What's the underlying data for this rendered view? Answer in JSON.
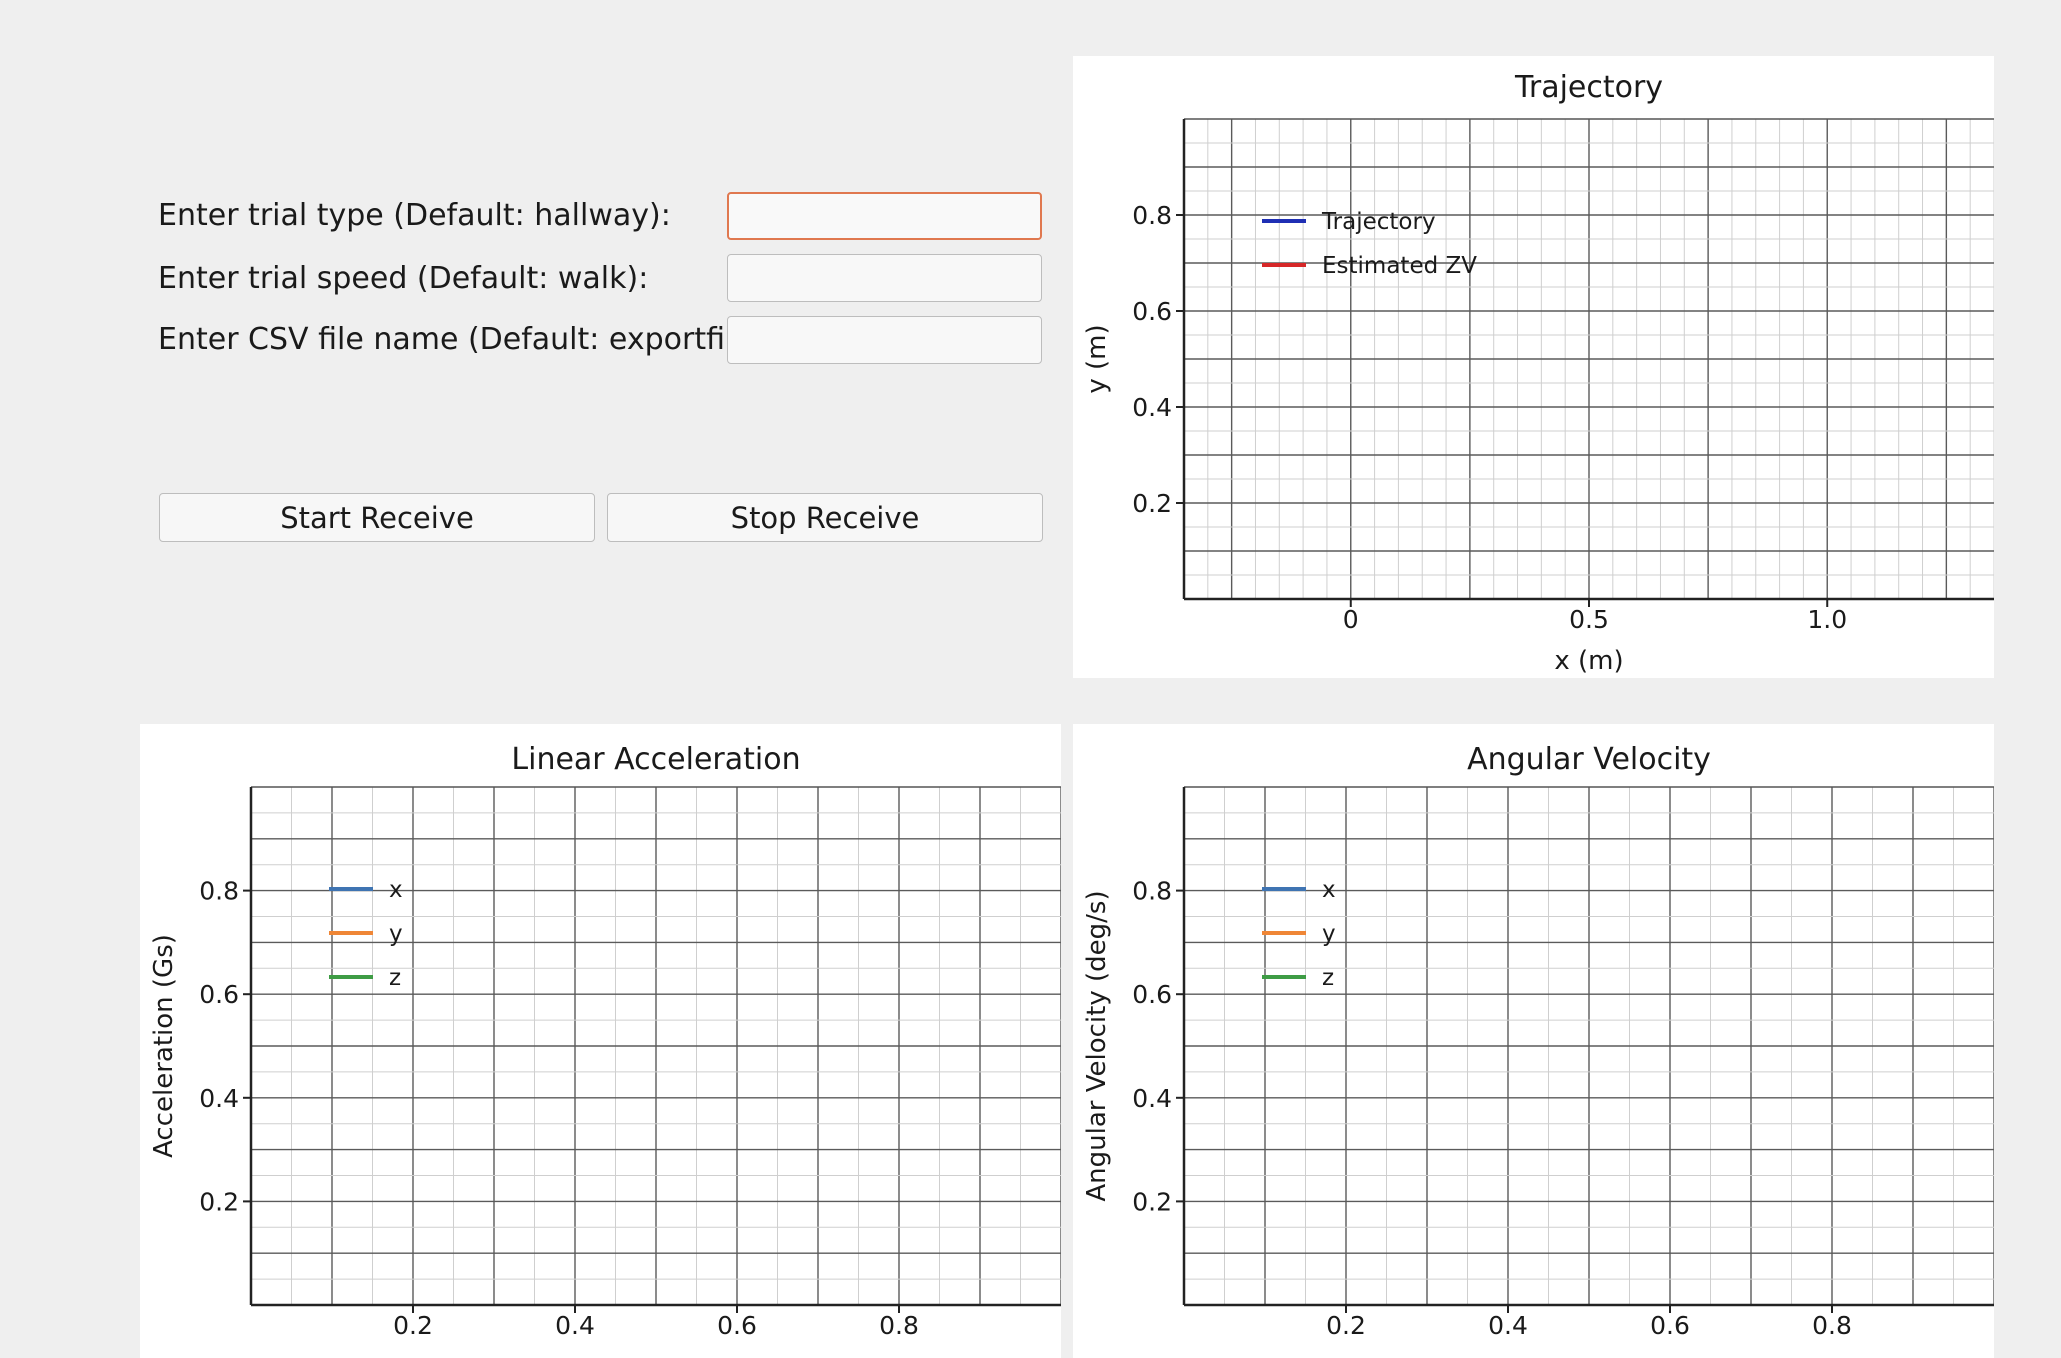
{
  "form": {
    "trial_type": {
      "label": "Enter trial type (Default: hallway):",
      "value": "",
      "focused": true
    },
    "trial_speed": {
      "label": "Enter trial speed (Default: walk):",
      "value": ""
    },
    "csv_name": {
      "label": "Enter CSV file name (Default: exportfile):",
      "value": ""
    }
  },
  "buttons": {
    "start_label": "Start Receive",
    "stop_label": "Stop Receive"
  },
  "chart_data": [
    {
      "id": "trajectory",
      "type": "line",
      "title": "Trajectory",
      "xlabel": "x (m)",
      "ylabel": "y (m)",
      "xlim": [
        -0.35,
        1.35
      ],
      "ylim": [
        0,
        1
      ],
      "xticks": [
        0,
        0.5,
        1.0
      ],
      "xtick_labels": [
        "0",
        "0.5",
        "1.0"
      ],
      "yticks": [
        0.2,
        0.4,
        0.6,
        0.8
      ],
      "ytick_labels": [
        "0.2",
        "0.4",
        "0.6",
        "0.8"
      ],
      "grid": true,
      "legend_position": "top-left",
      "series": [
        {
          "name": "Trajectory",
          "color": "#1f2fb4",
          "x": [],
          "y": []
        },
        {
          "name": "Estimated ZV",
          "color": "#d62728",
          "x": [],
          "y": []
        }
      ]
    },
    {
      "id": "linear-acceleration",
      "type": "line",
      "title": "Linear Acceleration",
      "xlabel": "",
      "ylabel": "Acceleration (Gs)",
      "xlim": [
        0,
        1
      ],
      "ylim": [
        0,
        1
      ],
      "xticks": [
        0.2,
        0.4,
        0.6,
        0.8
      ],
      "xtick_labels": [
        "0.2",
        "0.4",
        "0.6",
        "0.8"
      ],
      "yticks": [
        0.2,
        0.4,
        0.6,
        0.8
      ],
      "ytick_labels": [
        "0.2",
        "0.4",
        "0.6",
        "0.8"
      ],
      "grid": true,
      "legend_position": "top-left",
      "series": [
        {
          "name": "x",
          "color": "#3f74b2",
          "x": [],
          "y": []
        },
        {
          "name": "y",
          "color": "#ef8636",
          "x": [],
          "y": []
        },
        {
          "name": "z",
          "color": "#3e9c45",
          "x": [],
          "y": []
        }
      ]
    },
    {
      "id": "angular-velocity",
      "type": "line",
      "title": "Angular Velocity",
      "xlabel": "",
      "ylabel": "Angular Velocity (deg/s)",
      "xlim": [
        0,
        1
      ],
      "ylim": [
        0,
        1
      ],
      "xticks": [
        0.2,
        0.4,
        0.6,
        0.8
      ],
      "xtick_labels": [
        "0.2",
        "0.4",
        "0.6",
        "0.8"
      ],
      "yticks": [
        0.2,
        0.4,
        0.6,
        0.8
      ],
      "ytick_labels": [
        "0.2",
        "0.4",
        "0.6",
        "0.8"
      ],
      "grid": true,
      "legend_position": "top-left",
      "series": [
        {
          "name": "x",
          "color": "#3f74b2",
          "x": [],
          "y": []
        },
        {
          "name": "y",
          "color": "#ef8636",
          "x": [],
          "y": []
        },
        {
          "name": "z",
          "color": "#3e9c45",
          "x": [],
          "y": []
        }
      ]
    }
  ]
}
